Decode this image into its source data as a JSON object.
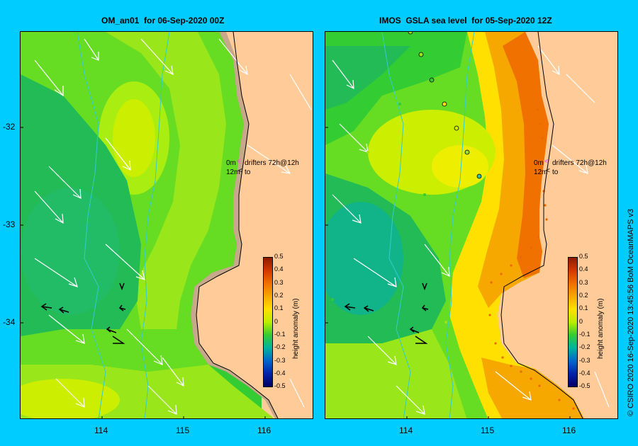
{
  "panels": [
    {
      "title": "OM_an01  for 06-Sep-2020 00Z"
    },
    {
      "title": "IMOS  GSLA sea level  for 05-Sep-2020 12Z"
    }
  ],
  "lat_ticks": [
    "-32",
    "-33",
    "-34"
  ],
  "lon_ticks": [
    "114",
    "115",
    "116"
  ],
  "drifter_legend": {
    "line1_depth": "0m",
    "line1_label": "drifters 72h@12h",
    "line2_depth": "12m",
    "line2_label": "to"
  },
  "colorbar": {
    "title": "height anomaly (m)",
    "labels": [
      "0.5",
      "0.4",
      "0.3",
      "0.2",
      "0.1",
      "0",
      "-0.1",
      "-0.2",
      "-0.3",
      "-0.4",
      "-0.5"
    ]
  },
  "credit": "© CSIRO 2020   16-Sep-2020 13:45:56 BoM OceanMAPS v3",
  "colors": {
    "background": "#00ccff",
    "land": "#ffcc99",
    "shelf": "#c8a88a",
    "drifter_surface": "#ff33ff",
    "drifter_12m": "#000000"
  }
}
